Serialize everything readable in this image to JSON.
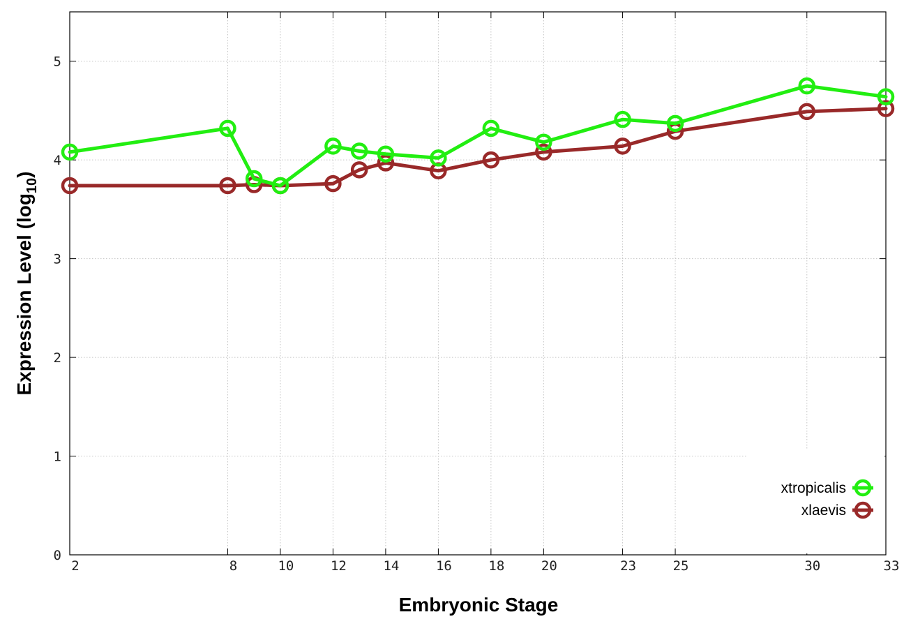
{
  "chart_data": {
    "type": "line",
    "title": "",
    "xlabel": "Embryonic Stage",
    "ylabel": {
      "text": "Expression Level (log",
      "subscript": "10",
      "suffix": ")"
    },
    "x_ticks": [
      2,
      8,
      10,
      12,
      14,
      16,
      18,
      20,
      23,
      25,
      30,
      33
    ],
    "y_ticks": [
      0,
      1,
      2,
      3,
      4,
      5
    ],
    "xlim": [
      2,
      33
    ],
    "ylim": [
      0,
      5.5
    ],
    "grid": true,
    "legend_position": "bottom-right",
    "x": [
      2,
      8,
      9,
      10,
      12,
      13,
      14,
      16,
      18,
      20,
      23,
      25,
      30,
      33
    ],
    "series": [
      {
        "name": "xtropicalis",
        "color": "#22ee11",
        "marker": "circle",
        "values": [
          4.08,
          4.32,
          3.81,
          3.74,
          4.14,
          4.09,
          4.06,
          4.02,
          4.32,
          4.18,
          4.41,
          4.37,
          4.75,
          4.64
        ]
      },
      {
        "name": "xlaevis",
        "color": "#992929",
        "marker": "circle",
        "values": [
          3.74,
          3.74,
          3.75,
          3.74,
          3.76,
          3.9,
          3.97,
          3.89,
          4.0,
          4.08,
          4.14,
          4.29,
          4.49,
          4.52
        ]
      }
    ]
  }
}
